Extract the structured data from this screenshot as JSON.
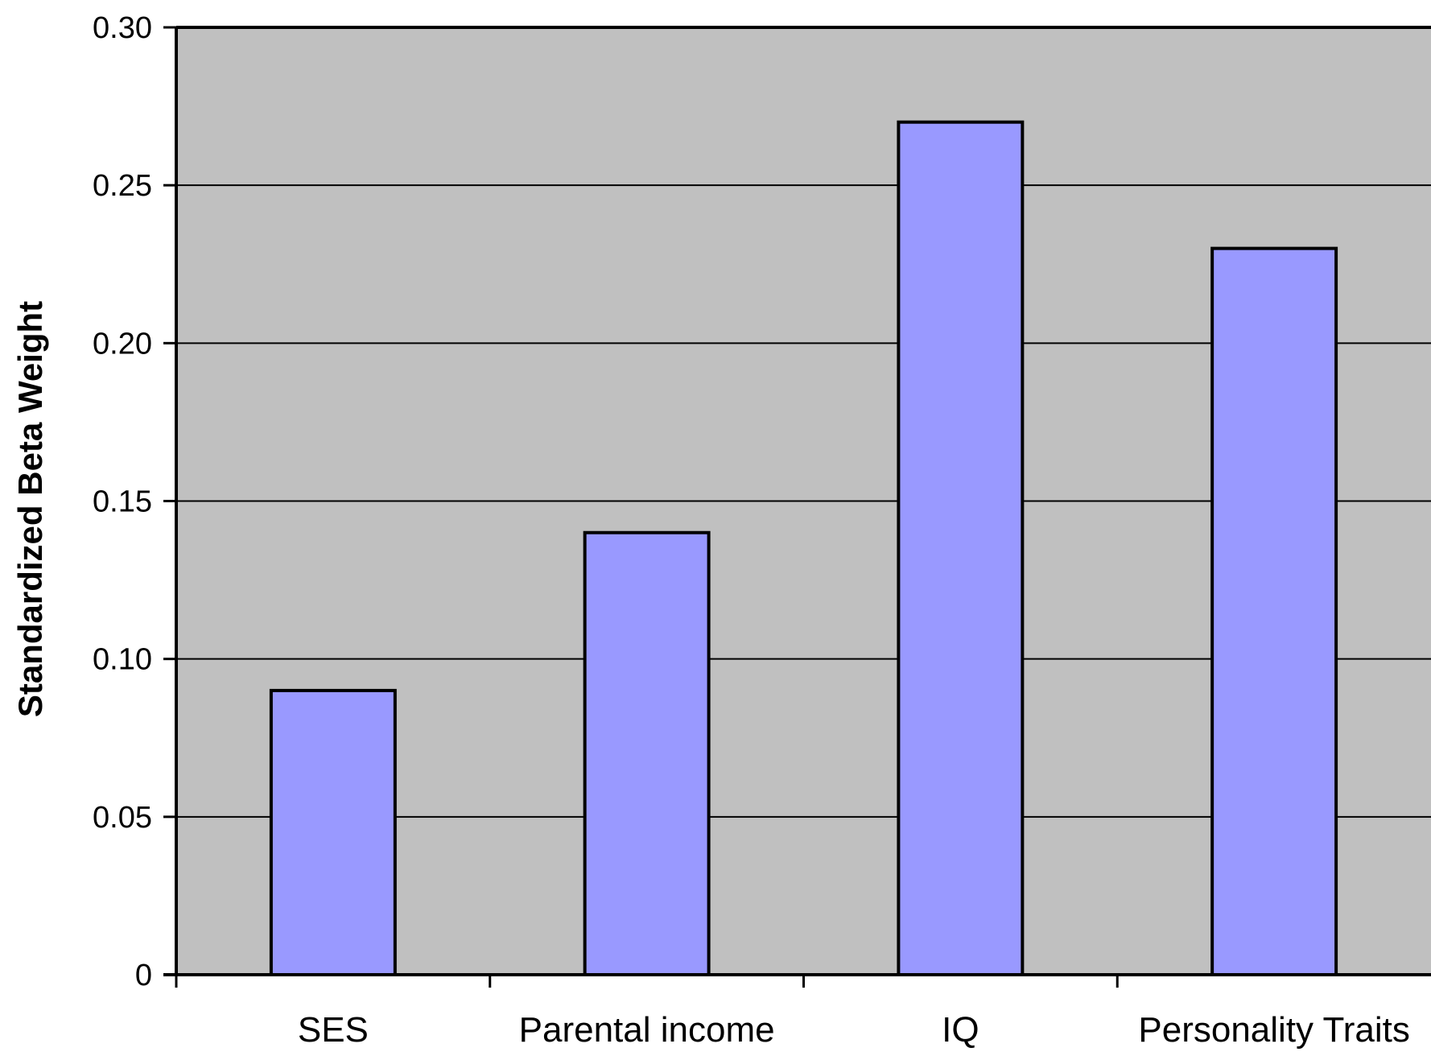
{
  "chart_data": {
    "type": "bar",
    "title": "",
    "xlabel": "",
    "ylabel": "Standardized Beta Weight",
    "categories": [
      "SES",
      "Parental income",
      "IQ",
      "Personality Traits"
    ],
    "values": [
      0.09,
      0.14,
      0.27,
      0.23
    ],
    "ylim": [
      0,
      0.3
    ],
    "yticks": [
      0,
      0.05,
      0.1,
      0.15,
      0.2,
      0.25,
      0.3
    ],
    "ytick_labels": [
      "0",
      "0.05",
      "0.10",
      "0.15",
      "0.20",
      "0.25",
      "0.30"
    ],
    "grid": true,
    "legend": "none",
    "colors": {
      "bar_fill": "#9999FF",
      "bar_stroke": "#000000",
      "plot_background": "#C0C0C0",
      "gridline": "#000000"
    }
  }
}
